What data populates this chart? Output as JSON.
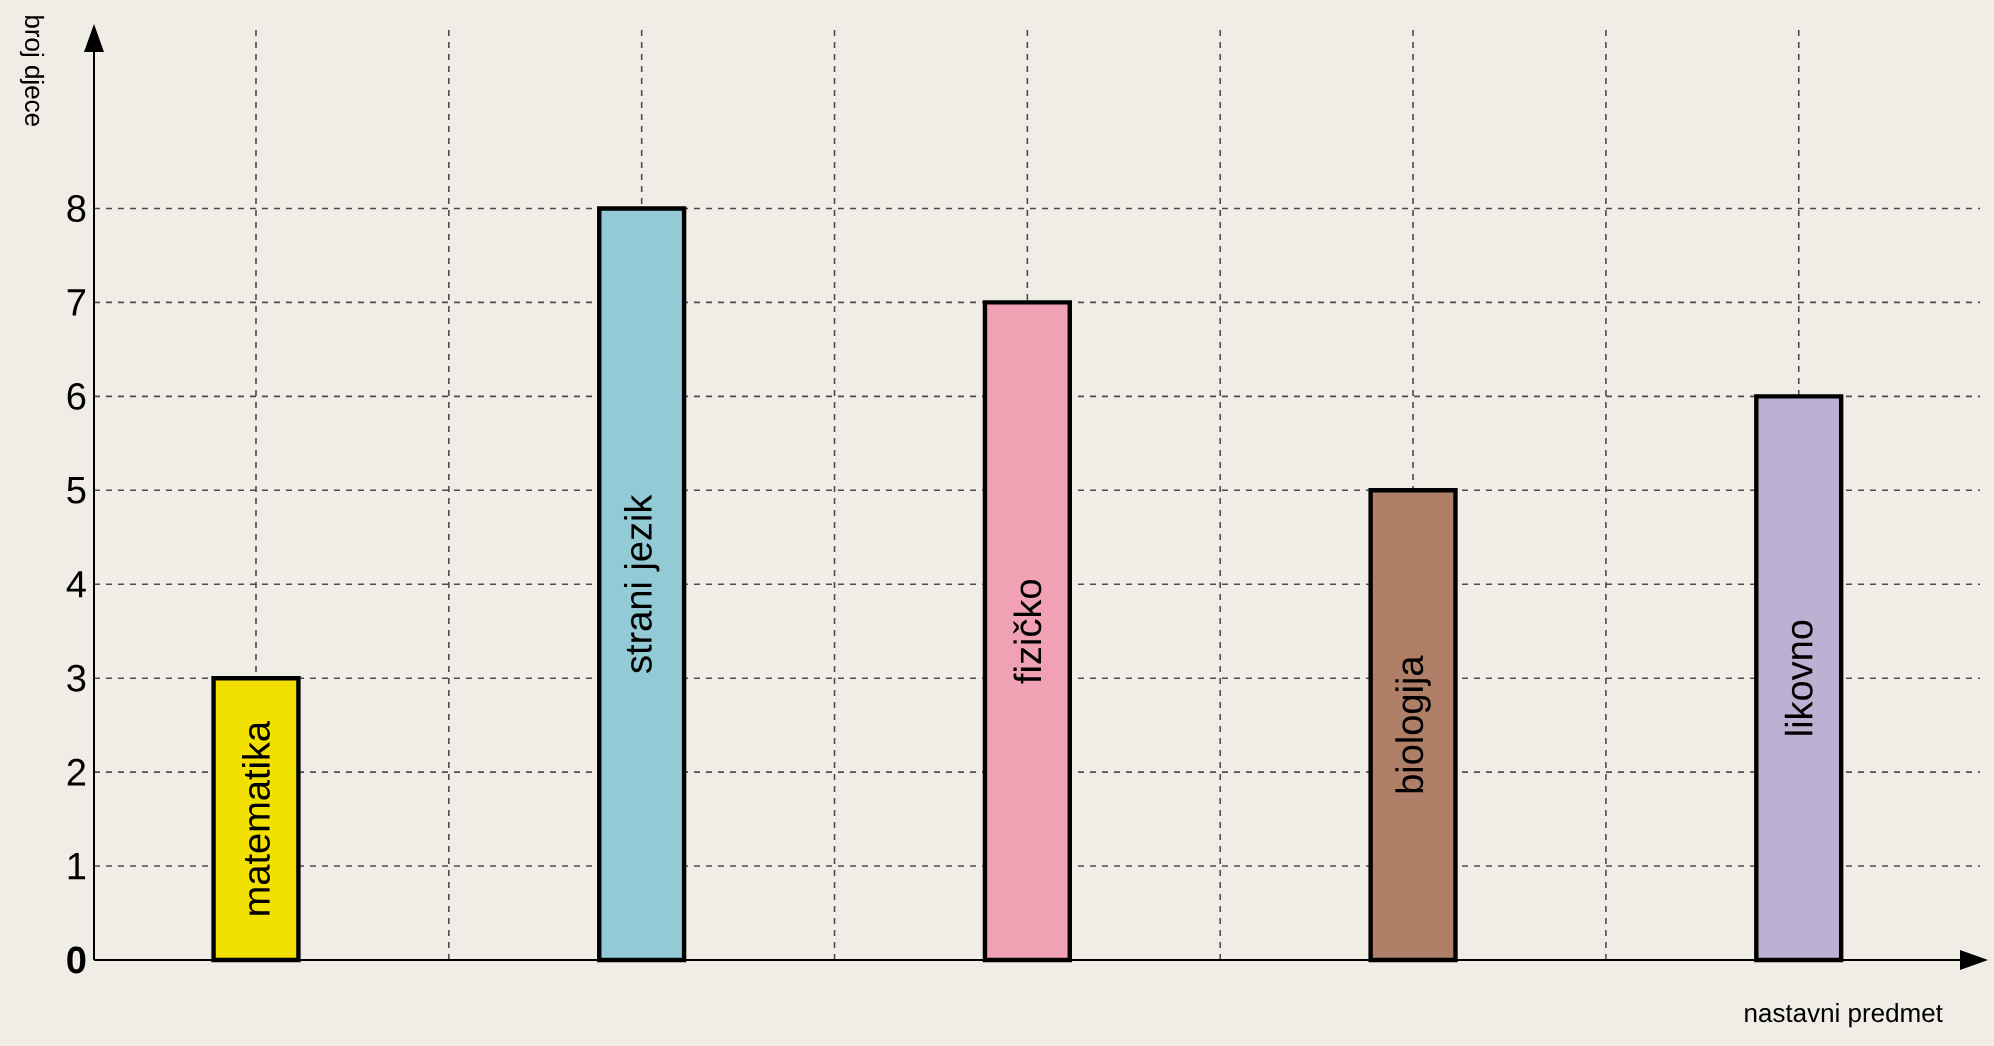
{
  "chart_data": {
    "type": "bar",
    "xlabel": "nastavni predmet",
    "ylabel": "broj djece",
    "categories": [
      "matematika",
      "strani jezik",
      "fizičko",
      "biologija",
      "likovno"
    ],
    "values": [
      3,
      8,
      7,
      5,
      6
    ],
    "colors": [
      "#f2e000",
      "#92cbd6",
      "#f0a2b4",
      "#b07f67",
      "#bcb0d3"
    ],
    "ylim": [
      0,
      9.9
    ],
    "yticks": [
      0,
      1,
      2,
      3,
      4,
      5,
      6,
      7,
      8
    ],
    "grid": true
  }
}
